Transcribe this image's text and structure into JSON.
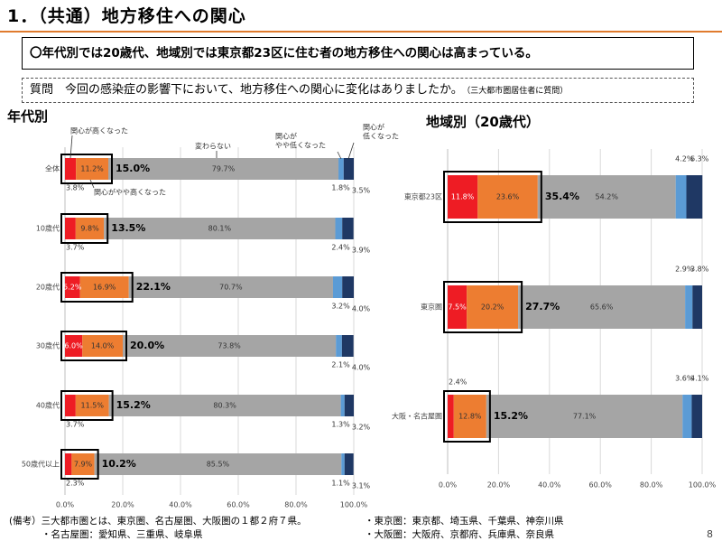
{
  "header": {
    "title": "1．（共通）地方移住への関心",
    "summary": "〇年代別では20歳代、地域別では東京都23区に住む者の地方移住への関心は高まっている。",
    "question": "質問　今回の感染症の影響下において、地方移住への関心に変化はありましたか。",
    "question_note": "（三大都市圏居住者に質問）"
  },
  "sections": {
    "left": "年代別",
    "right": "地域別（20歳代）"
  },
  "legend_labels": {
    "high": "関心が高くなった",
    "somewhat_high": "関心がやや高くなった",
    "unchanged": "変わらない",
    "somewhat_low": "関心が\nやや低くなった",
    "low": "関心が\n低くなった"
  },
  "colors": {
    "high": "#ee1c24",
    "somewhat_high": "#ed7d31",
    "unchanged": "#a5a5a5",
    "somewhat_low": "#5b9bd5",
    "low": "#1f3864"
  },
  "chart_data": [
    {
      "type": "bar",
      "orientation": "horizontal",
      "stacked": true,
      "title": "年代別",
      "categories": [
        "全体",
        "10歳代",
        "20歳代",
        "30歳代",
        "40歳代",
        "50歳代以上"
      ],
      "series": [
        {
          "name": "関心が高くなった",
          "values": [
            3.8,
            3.7,
            5.2,
            6.0,
            3.7,
            2.3
          ]
        },
        {
          "name": "関心がやや高くなった",
          "values": [
            11.2,
            9.8,
            16.9,
            14.0,
            11.5,
            7.9
          ]
        },
        {
          "name": "変わらない",
          "values": [
            79.7,
            80.1,
            70.7,
            73.8,
            80.3,
            85.5
          ]
        },
        {
          "name": "関心がやや低くなった",
          "values": [
            1.8,
            2.4,
            3.2,
            2.1,
            1.3,
            1.1
          ]
        },
        {
          "name": "関心が低くなった",
          "values": [
            3.5,
            3.9,
            4.0,
            4.0,
            3.2,
            3.1
          ]
        }
      ],
      "totals_high": [
        "15.0%",
        "13.5%",
        "22.1%",
        "20.0%",
        "15.2%",
        "10.2%"
      ],
      "xlim": [
        0,
        100
      ],
      "xticks": [
        "0.0%",
        "20.0%",
        "40.0%",
        "60.0%",
        "80.0%",
        "100.0%"
      ]
    },
    {
      "type": "bar",
      "orientation": "horizontal",
      "stacked": true,
      "title": "地域別（20歳代）",
      "categories": [
        "東京都23区",
        "東京圏",
        "大阪・名古屋圏"
      ],
      "series": [
        {
          "name": "関心が高くなった",
          "values": [
            11.8,
            7.5,
            2.4
          ]
        },
        {
          "name": "関心がやや高くなった",
          "values": [
            23.6,
            20.2,
            12.8
          ]
        },
        {
          "name": "変わらない",
          "values": [
            54.2,
            65.6,
            77.1
          ]
        },
        {
          "name": "関心がやや低くなった",
          "values": [
            4.2,
            2.9,
            3.6
          ]
        },
        {
          "name": "関心が低くなった",
          "values": [
            6.3,
            3.8,
            4.1
          ]
        }
      ],
      "totals_high": [
        "35.4%",
        "27.7%",
        "15.2%"
      ],
      "xlim": [
        0,
        100
      ],
      "xticks": [
        "0.0%",
        "20.0%",
        "40.0%",
        "60.0%",
        "80.0%",
        "100.0%"
      ]
    }
  ],
  "footer": {
    "note1": "(備考）三大都市圏とは、東京圏、名古屋圏、大阪圏の１都２府７県。",
    "note2": "・名古屋圏：愛知県、三重県、岐阜県",
    "note3": "・東京圏：東京都、埼玉県、千葉県、神奈川県",
    "note4": "・大阪圏：大阪府、京都府、兵庫県、奈良県",
    "page": "8"
  }
}
